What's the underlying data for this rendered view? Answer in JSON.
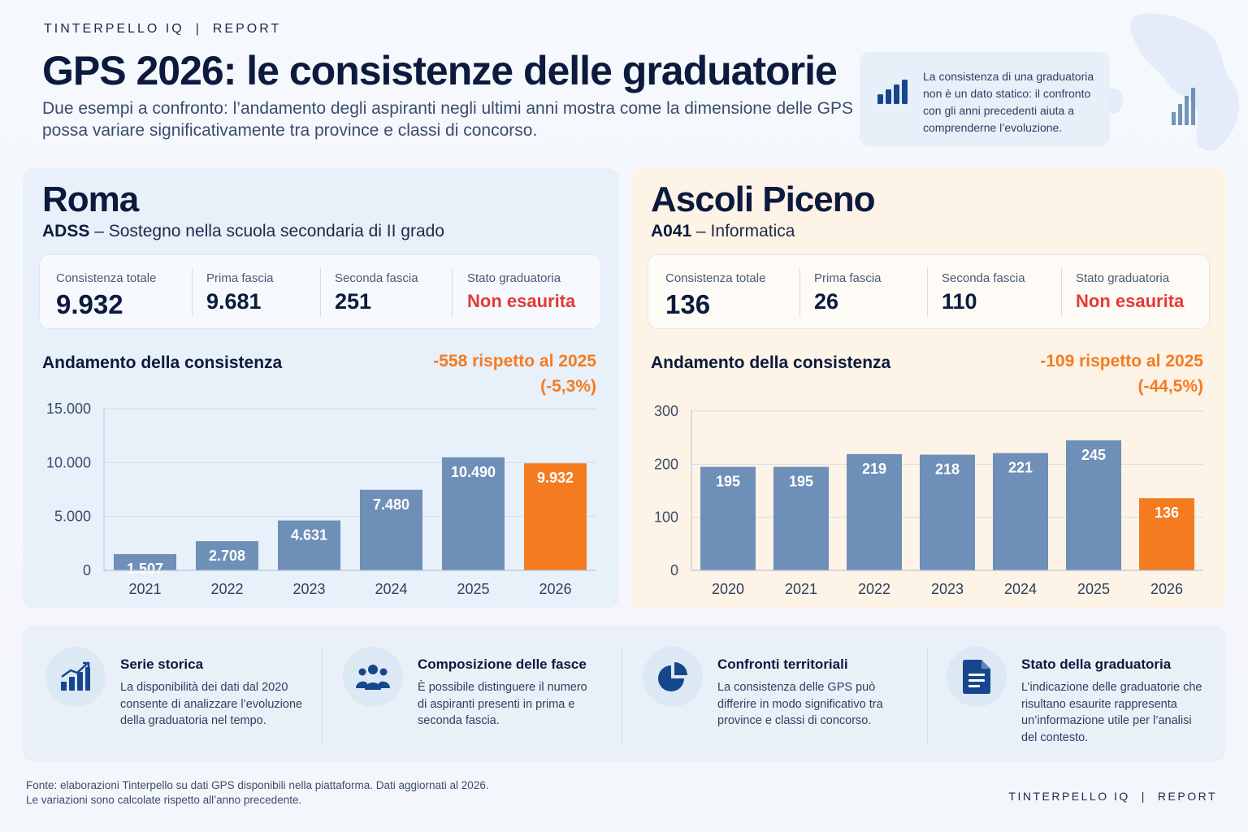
{
  "brand": {
    "name": "TINTERPELLO IQ",
    "section": "REPORT",
    "divider": "|"
  },
  "title": "GPS 2026: le consistenze delle graduatorie",
  "subtitle": "Due esempi a confronto: l’andamento degli aspiranti negli ultimi anni mostra come la dimensione delle GPS possa variare significativamente tra province e classi di concorso.",
  "info_box": {
    "icon": "bar-chart-icon",
    "text": "La consistenza di una graduatoria non è un dato statico: il confronto con gli anni precedenti aiuta a comprenderne l’evoluzione."
  },
  "colors": {
    "bar": "#6e8fb8",
    "highlight": "#f47b20",
    "negative": "#e53935",
    "navy": "#0b1a3d"
  },
  "panels": {
    "roma": {
      "city": "Roma",
      "class_code": "ADSS",
      "class_name": " – Sostegno nella scuola secondaria di II grado",
      "stats": [
        {
          "label": "Consistenza totale",
          "value": "9.932"
        },
        {
          "label": "Prima fascia",
          "value": "9.681"
        },
        {
          "label": "Seconda fascia",
          "value": "251"
        },
        {
          "label": "Stato graduatoria",
          "value": "Non esaurita"
        }
      ],
      "trend_title": "Andamento della consistenza",
      "delta_line1": "-558 rispetto al 2025",
      "delta_line2": "(-5,3%)"
    },
    "ascoli": {
      "city": "Ascoli Piceno",
      "class_code": "A041",
      "class_name": " – Informatica",
      "stats": [
        {
          "label": "Consistenza totale",
          "value": "136"
        },
        {
          "label": "Prima fascia",
          "value": "26"
        },
        {
          "label": "Seconda fascia",
          "value": "110"
        },
        {
          "label": "Stato graduatoria",
          "value": "Non esaurita"
        }
      ],
      "trend_title": "Andamento della consistenza",
      "delta_line1": "-109 rispetto al 2025",
      "delta_line2": "(-44,5%)"
    }
  },
  "chart_data": [
    {
      "type": "bar",
      "categories": [
        "2021",
        "2022",
        "2023",
        "2024",
        "2025",
        "2026"
      ],
      "values": [
        1507,
        2708,
        4631,
        7480,
        10490,
        9932
      ],
      "value_labels": [
        "1.507",
        "2.708",
        "4.631",
        "7.480",
        "10.490",
        "9.932"
      ],
      "highlight_index": 5,
      "ylim": [
        0,
        15000
      ],
      "yticks": [
        0,
        5000,
        10000,
        15000
      ],
      "ytick_labels": [
        "0",
        "5.000",
        "10.000",
        "15.000"
      ],
      "grid": true
    },
    {
      "type": "bar",
      "categories": [
        "2020",
        "2021",
        "2022",
        "2023",
        "2024",
        "2025",
        "2026"
      ],
      "values": [
        195,
        195,
        219,
        218,
        221,
        245,
        136
      ],
      "value_labels": [
        "195",
        "195",
        "219",
        "218",
        "221",
        "245",
        "136"
      ],
      "highlight_index": 6,
      "ylim": [
        0,
        300
      ],
      "yticks": [
        0,
        100,
        200,
        300
      ],
      "ytick_labels": [
        "0",
        "100",
        "200",
        "300"
      ],
      "grid": true
    }
  ],
  "features": [
    {
      "icon": "growth-chart-icon",
      "title": "Serie storica",
      "text": "La disponibilità dei dati dal 2020 consente di analizzare l’evoluzione della graduatoria nel tempo."
    },
    {
      "icon": "people-icon",
      "title": "Composizione delle fasce",
      "text": "È possibile distinguere il numero di aspiranti presenti in prima e seconda fascia."
    },
    {
      "icon": "pie-chart-icon",
      "title": "Confronti territoriali",
      "text": "La consistenza delle GPS può differire in modo significativo tra province e classi di concorso."
    },
    {
      "icon": "document-icon",
      "title": "Stato della graduatoria",
      "text": "L’indicazione delle graduatorie che risultano esaurite rappresenta un’informazione utile per l’analisi del contesto."
    }
  ],
  "source": {
    "line1": "Fonte: elaborazioni Tinterpello su dati GPS disponibili nella piattaforma. Dati aggiornati al 2026.",
    "line2": "Le variazioni sono calcolate rispetto all’anno precedente."
  }
}
